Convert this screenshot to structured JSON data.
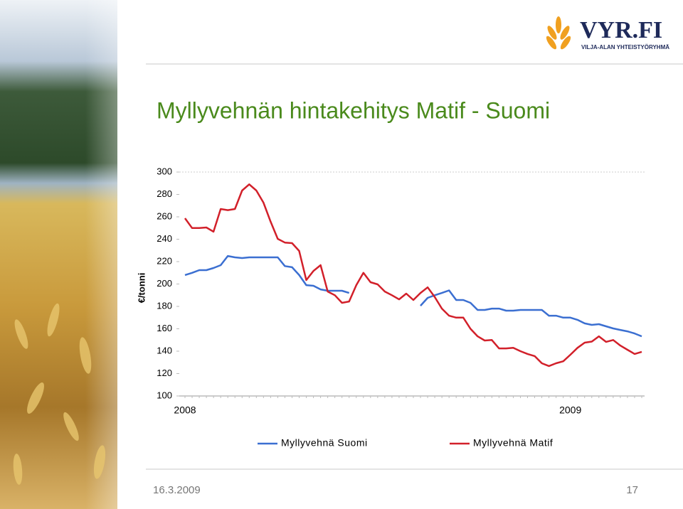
{
  "logo": {
    "name": "VYR.FI",
    "tagline": "VILJA-ALAN YHTEISTYÖRYHMÄ"
  },
  "footer": {
    "date": "16.3.2009",
    "page": "17"
  },
  "chart_data": {
    "type": "line",
    "title": "Myllyvehnän hintakehitys Matif - Suomi",
    "y_label": "€/tonni",
    "categories": [
      "2008",
      null,
      null,
      null,
      null,
      null,
      null,
      null,
      null,
      null,
      null,
      null,
      null,
      null,
      null,
      null,
      null,
      null,
      null,
      null,
      null,
      null,
      null,
      null,
      null,
      null,
      null,
      null,
      null,
      null,
      null,
      null,
      null,
      null,
      null,
      null,
      null,
      null,
      null,
      null,
      null,
      null,
      null,
      null,
      null,
      null,
      null,
      null,
      null,
      null,
      null,
      null,
      null,
      null,
      "2009",
      null,
      null,
      null,
      null,
      null,
      null,
      null,
      null,
      null,
      null
    ],
    "series": [
      {
        "name": "Myllyvehnä Suomi",
        "color": "#3b6fd1",
        "values": [
          208,
          210,
          212.4,
          212.4,
          214.3,
          216.8,
          225,
          223.8,
          223.2,
          223.8,
          223.8,
          223.8,
          223.8,
          223.8,
          216,
          215,
          208,
          199,
          198.4,
          195.2,
          194,
          194,
          194,
          192,
          null,
          null,
          null,
          null,
          null,
          null,
          null,
          null,
          null,
          180.6,
          187.6,
          190,
          192,
          194.3,
          185.7,
          185.7,
          183.2,
          176.8,
          176.8,
          178,
          178,
          176.2,
          176.2,
          176.8,
          176.8,
          176.8,
          176.8,
          171.7,
          171.7,
          170,
          170,
          168,
          164.8,
          163.5,
          164.1,
          162.2,
          160.3,
          159,
          157.7,
          155.8,
          153.3
        ]
      },
      {
        "name": "Myllyvehnä Matif",
        "color": "#d2202a",
        "values": [
          258.7,
          250,
          250,
          250.5,
          246.7,
          267,
          266,
          267,
          283.5,
          289,
          283.5,
          272.7,
          255.6,
          240.3,
          237,
          236.5,
          229.5,
          203.5,
          211.7,
          216.8,
          193.3,
          190,
          183.2,
          184.4,
          199,
          210,
          201.6,
          199.7,
          193.3,
          190,
          186.3,
          191.4,
          185.7,
          192,
          197,
          188.3,
          178,
          171.7,
          170,
          170,
          160,
          153.3,
          149.5,
          150,
          142.5,
          142.5,
          143,
          140,
          137.5,
          135.6,
          129.2,
          126.7,
          129.2,
          131,
          136.8,
          143,
          147.6,
          148.6,
          153.3,
          148.3,
          150,
          145,
          141.3,
          137.5,
          139.4
        ]
      }
    ],
    "ylim": [
      100,
      300
    ],
    "yticks": [
      100,
      120,
      140,
      160,
      180,
      200,
      220,
      240,
      260,
      280,
      300
    ],
    "grid": false
  }
}
